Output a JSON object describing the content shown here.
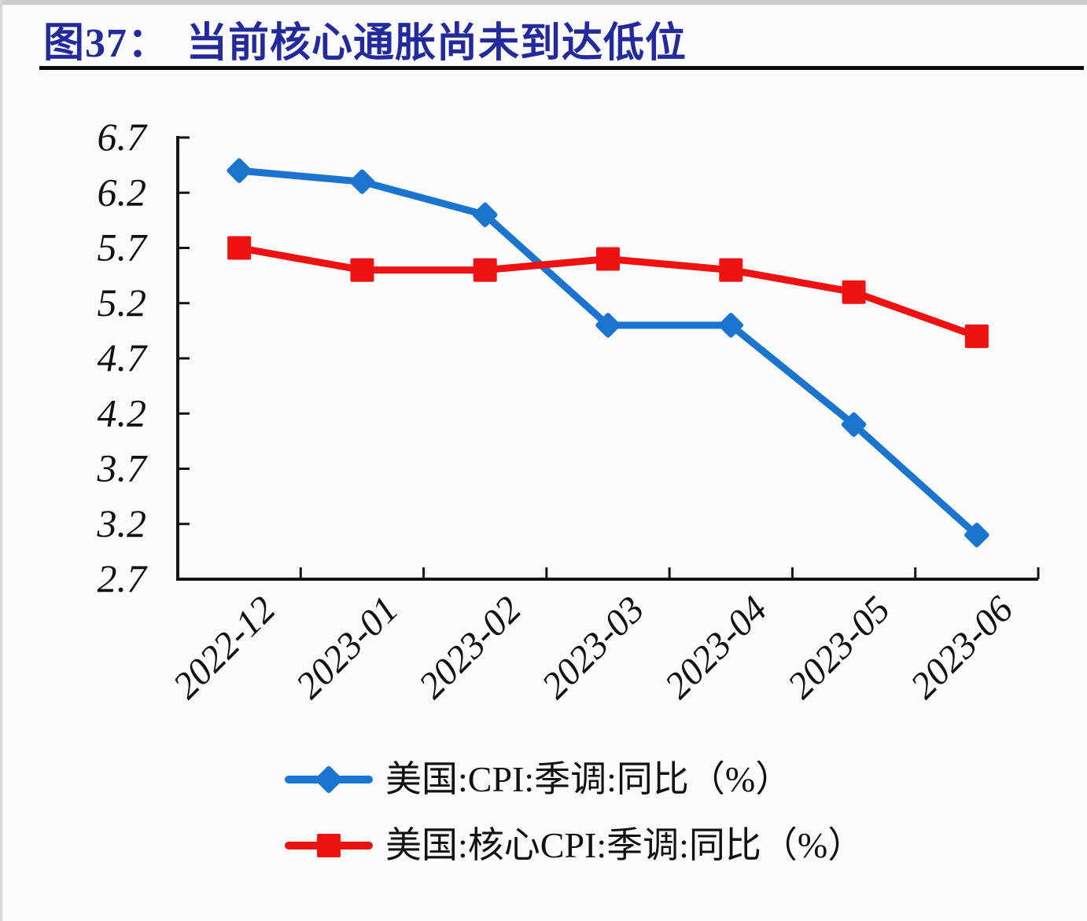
{
  "header": {
    "figure_no": "图37：",
    "title": "当前核心通胀尚未到达低位"
  },
  "chart_data": {
    "type": "line",
    "title": "图37：当前核心通胀尚未到达低位",
    "categories": [
      "2022-12",
      "2023-01",
      "2023-02",
      "2023-03",
      "2023-04",
      "2023-05",
      "2023-06"
    ],
    "series": [
      {
        "name": "美国:CPI:季调:同比（%）",
        "marker": "diamond",
        "color": "#1b74ce",
        "values": [
          6.4,
          6.3,
          6.0,
          5.0,
          5.0,
          4.1,
          3.1
        ]
      },
      {
        "name": "美国:核心CPI:季调:同比（%）",
        "marker": "square",
        "color": "#ee1212",
        "values": [
          5.7,
          5.5,
          5.5,
          5.6,
          5.5,
          5.3,
          4.9
        ]
      }
    ],
    "xlabel": "",
    "ylabel": "",
    "ylim": [
      2.7,
      6.7
    ],
    "yticks": [
      6.7,
      6.2,
      5.7,
      5.2,
      4.7,
      4.2,
      3.7,
      3.2,
      2.7
    ],
    "grid": false,
    "legend_position": "bottom",
    "axis_color": "#141414",
    "tick_label_color": "#111111"
  },
  "legend": {
    "items": [
      {
        "label": "美国:CPI:季调:同比（%）",
        "marker": "diamond",
        "color": "#1b74ce"
      },
      {
        "label": "美国:核心CPI:季调:同比（%）",
        "marker": "square",
        "color": "#ee1212"
      }
    ]
  }
}
